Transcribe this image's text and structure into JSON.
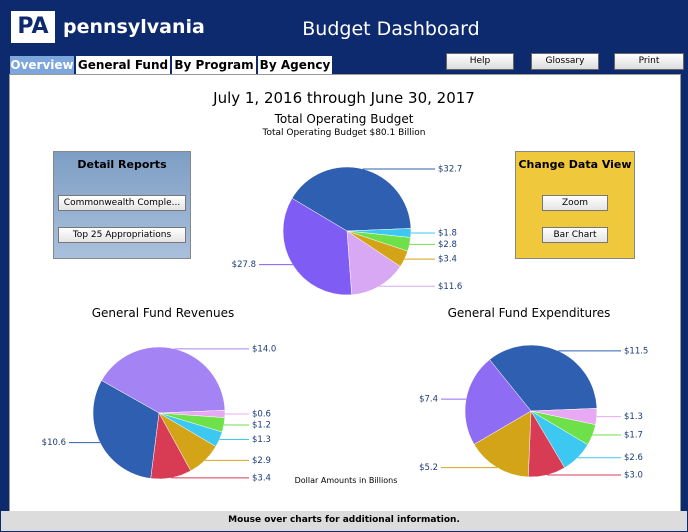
{
  "header": {
    "logo": "PA",
    "brand": "pennsylvania",
    "title": "Budget Dashboard"
  },
  "tabs": [
    "Overview",
    "General Fund",
    "By Program",
    "By Agency"
  ],
  "buttons": [
    "Help",
    "Glossary",
    "Print"
  ],
  "period": "July 1, 2016 through June 30, 2017",
  "detail_reports": {
    "title": "Detail Reports",
    "buttons": [
      "Commonwealth Comple...",
      "Top 25 Appropriations"
    ]
  },
  "change_data_view": {
    "title": "Change Data View",
    "buttons": [
      "Zoom",
      "Bar Chart"
    ]
  },
  "chart_data": [
    {
      "type": "pie",
      "title": "Total Operating Budget",
      "subtitle": "Total Operating Budget $80.1 Billion",
      "values": [
        32.7,
        1.8,
        2.8,
        3.4,
        11.6,
        27.8
      ],
      "value_labels": [
        "$32.7",
        "$1.8",
        "$2.8",
        "$3.4",
        "$11.6",
        "$27.8"
      ],
      "colors": [
        "#2f5fb0",
        "#3cc8f0",
        "#6ee04a",
        "#d4a418",
        "#d8a8f4",
        "#7f5cf4"
      ]
    },
    {
      "type": "pie",
      "title": "General Fund Revenues",
      "values": [
        14.0,
        0.6,
        1.2,
        1.3,
        2.9,
        3.4,
        10.6
      ],
      "value_labels": [
        "$14.0",
        "$0.6",
        "$1.2",
        "$1.3",
        "$2.9",
        "$3.4",
        "$10.6"
      ],
      "colors": [
        "#a484f4",
        "#e8a8f4",
        "#6ee04a",
        "#3cc8f0",
        "#d4a418",
        "#d83c54",
        "#2f5fb0"
      ]
    },
    {
      "type": "pie",
      "title": "General Fund Expenditures",
      "values": [
        11.5,
        1.3,
        1.7,
        2.6,
        3.0,
        5.2,
        7.4
      ],
      "value_labels": [
        "$11.5",
        "$1.3",
        "$1.7",
        "$2.6",
        "$3.0",
        "$5.2",
        "$7.4"
      ],
      "colors": [
        "#2f5fb0",
        "#e8a8f4",
        "#6ee04a",
        "#3cc8f0",
        "#d83c54",
        "#d4a418",
        "#8f6cf4"
      ]
    }
  ],
  "note": "Dollar Amounts in Billions",
  "footer": "Mouse over charts for additional information."
}
